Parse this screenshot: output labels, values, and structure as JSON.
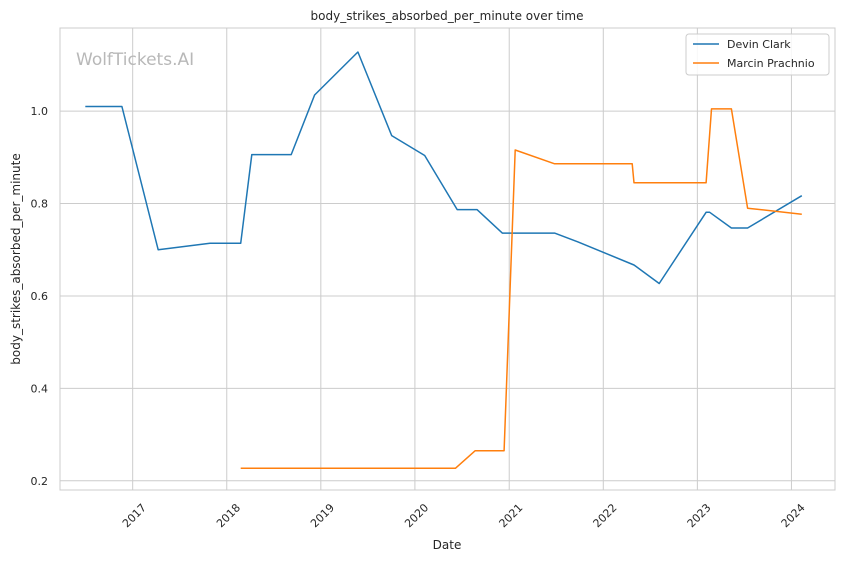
{
  "chart_data": {
    "type": "line",
    "title": "body_strikes_absorbed_per_minute over time",
    "xlabel": "Date",
    "ylabel": "body_strikes_absorbed_per_minute",
    "watermark": "WolfTickets.AI",
    "xlim": [
      "2016-03-25",
      "2024-06-18"
    ],
    "ylim": [
      0.18,
      1.18
    ],
    "x_ticks": [
      "2017",
      "2018",
      "2019",
      "2020",
      "2021",
      "2022",
      "2023",
      "2024"
    ],
    "y_ticks": [
      0.2,
      0.4,
      0.6,
      0.8,
      1.0
    ],
    "y_tick_labels": [
      "0.2",
      "0.4",
      "0.6",
      "0.8",
      "1.0"
    ],
    "grid": true,
    "legend_position": "top-right",
    "series": [
      {
        "name": "Devin Clark",
        "color": "#1f77b4",
        "points": [
          [
            "2016-07-01",
            1.01
          ],
          [
            "2016-11-20",
            1.01
          ],
          [
            "2017-04-10",
            0.7
          ],
          [
            "2017-10-28",
            0.714
          ],
          [
            "2018-02-24",
            0.714
          ],
          [
            "2018-04-08",
            0.906
          ],
          [
            "2018-09-08",
            0.906
          ],
          [
            "2018-12-08",
            1.035
          ],
          [
            "2019-05-25",
            1.128
          ],
          [
            "2019-10-03",
            0.947
          ],
          [
            "2020-02-08",
            0.904
          ],
          [
            "2020-06-13",
            0.787
          ],
          [
            "2020-08-29",
            0.787
          ],
          [
            "2020-12-05",
            0.736
          ],
          [
            "2021-06-26",
            0.736
          ],
          [
            "2021-09-25",
            0.717
          ],
          [
            "2022-04-30",
            0.667
          ],
          [
            "2022-08-06",
            0.627
          ],
          [
            "2023-02-04",
            0.781
          ],
          [
            "2023-02-18",
            0.781
          ],
          [
            "2023-05-13",
            0.747
          ],
          [
            "2023-07-15",
            0.747
          ],
          [
            "2024-02-10",
            0.817
          ]
        ]
      },
      {
        "name": "Marcin Prachnio",
        "color": "#ff7f0e",
        "points": [
          [
            "2018-02-24",
            0.227
          ],
          [
            "2020-06-06",
            0.227
          ],
          [
            "2020-08-22",
            0.265
          ],
          [
            "2020-12-12",
            0.265
          ],
          [
            "2021-01-24",
            0.916
          ],
          [
            "2021-06-26",
            0.886
          ],
          [
            "2022-04-23",
            0.886
          ],
          [
            "2022-04-30",
            0.845
          ],
          [
            "2023-02-04",
            0.845
          ],
          [
            "2023-02-25",
            1.005
          ],
          [
            "2023-05-13",
            1.005
          ],
          [
            "2023-07-15",
            0.79
          ],
          [
            "2024-02-10",
            0.777
          ]
        ]
      }
    ]
  }
}
